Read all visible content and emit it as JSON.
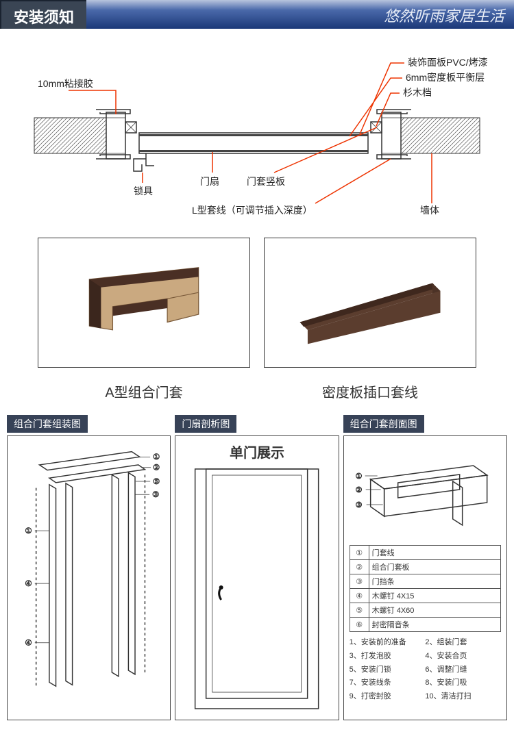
{
  "header": {
    "title": "安装须知",
    "brand": "悠然听雨家居生活"
  },
  "cross_section": {
    "labels": {
      "adhesive": "10mm粘接胶",
      "lock": "锁具",
      "door_leaf": "门扇",
      "jamb": "门套竖板",
      "l_molding": "L型套线（可调节插入深度）",
      "wall": "墙体",
      "panel": "装饰面板PVC/烤漆",
      "balance": "6mm密度板平衡层",
      "fir": "杉木档"
    },
    "colors": {
      "lead": "#e63312",
      "line": "#222222",
      "balance_fill": "#444444"
    }
  },
  "photos": {
    "left_caption": "A型组合门套",
    "right_caption": "密度板插口套线",
    "wood_dark": "#4a2f24",
    "wood_light": "#caa980",
    "trim_color": "#5b3d2e"
  },
  "panels": {
    "p1": {
      "title": "组合门套组装图",
      "numbers": [
        "①",
        "②",
        "③",
        "④",
        "⑤"
      ]
    },
    "p2": {
      "title": "门扇剖析图",
      "heading": "单门展示"
    },
    "p3": {
      "title": "组合门套剖面图",
      "numbers": [
        "①",
        "②",
        "③"
      ],
      "parts": [
        [
          "①",
          "门套线"
        ],
        [
          "②",
          "组合门套板"
        ],
        [
          "③",
          "门挡条"
        ],
        [
          "④",
          "木螺钉 4X15"
        ],
        [
          "⑤",
          "木螺钉 4X60"
        ],
        [
          "⑥",
          "封密隔音条"
        ]
      ],
      "steps": [
        [
          "1、安装前的准备",
          "2、组装门套"
        ],
        [
          "3、打发泡胶",
          "4、安装合页"
        ],
        [
          "5、安装门锁",
          "6、调整门缝"
        ],
        [
          "7、安装线条",
          "8、安装门吸"
        ],
        [
          "9、打密封胶",
          "10、清洁打扫"
        ]
      ]
    }
  }
}
